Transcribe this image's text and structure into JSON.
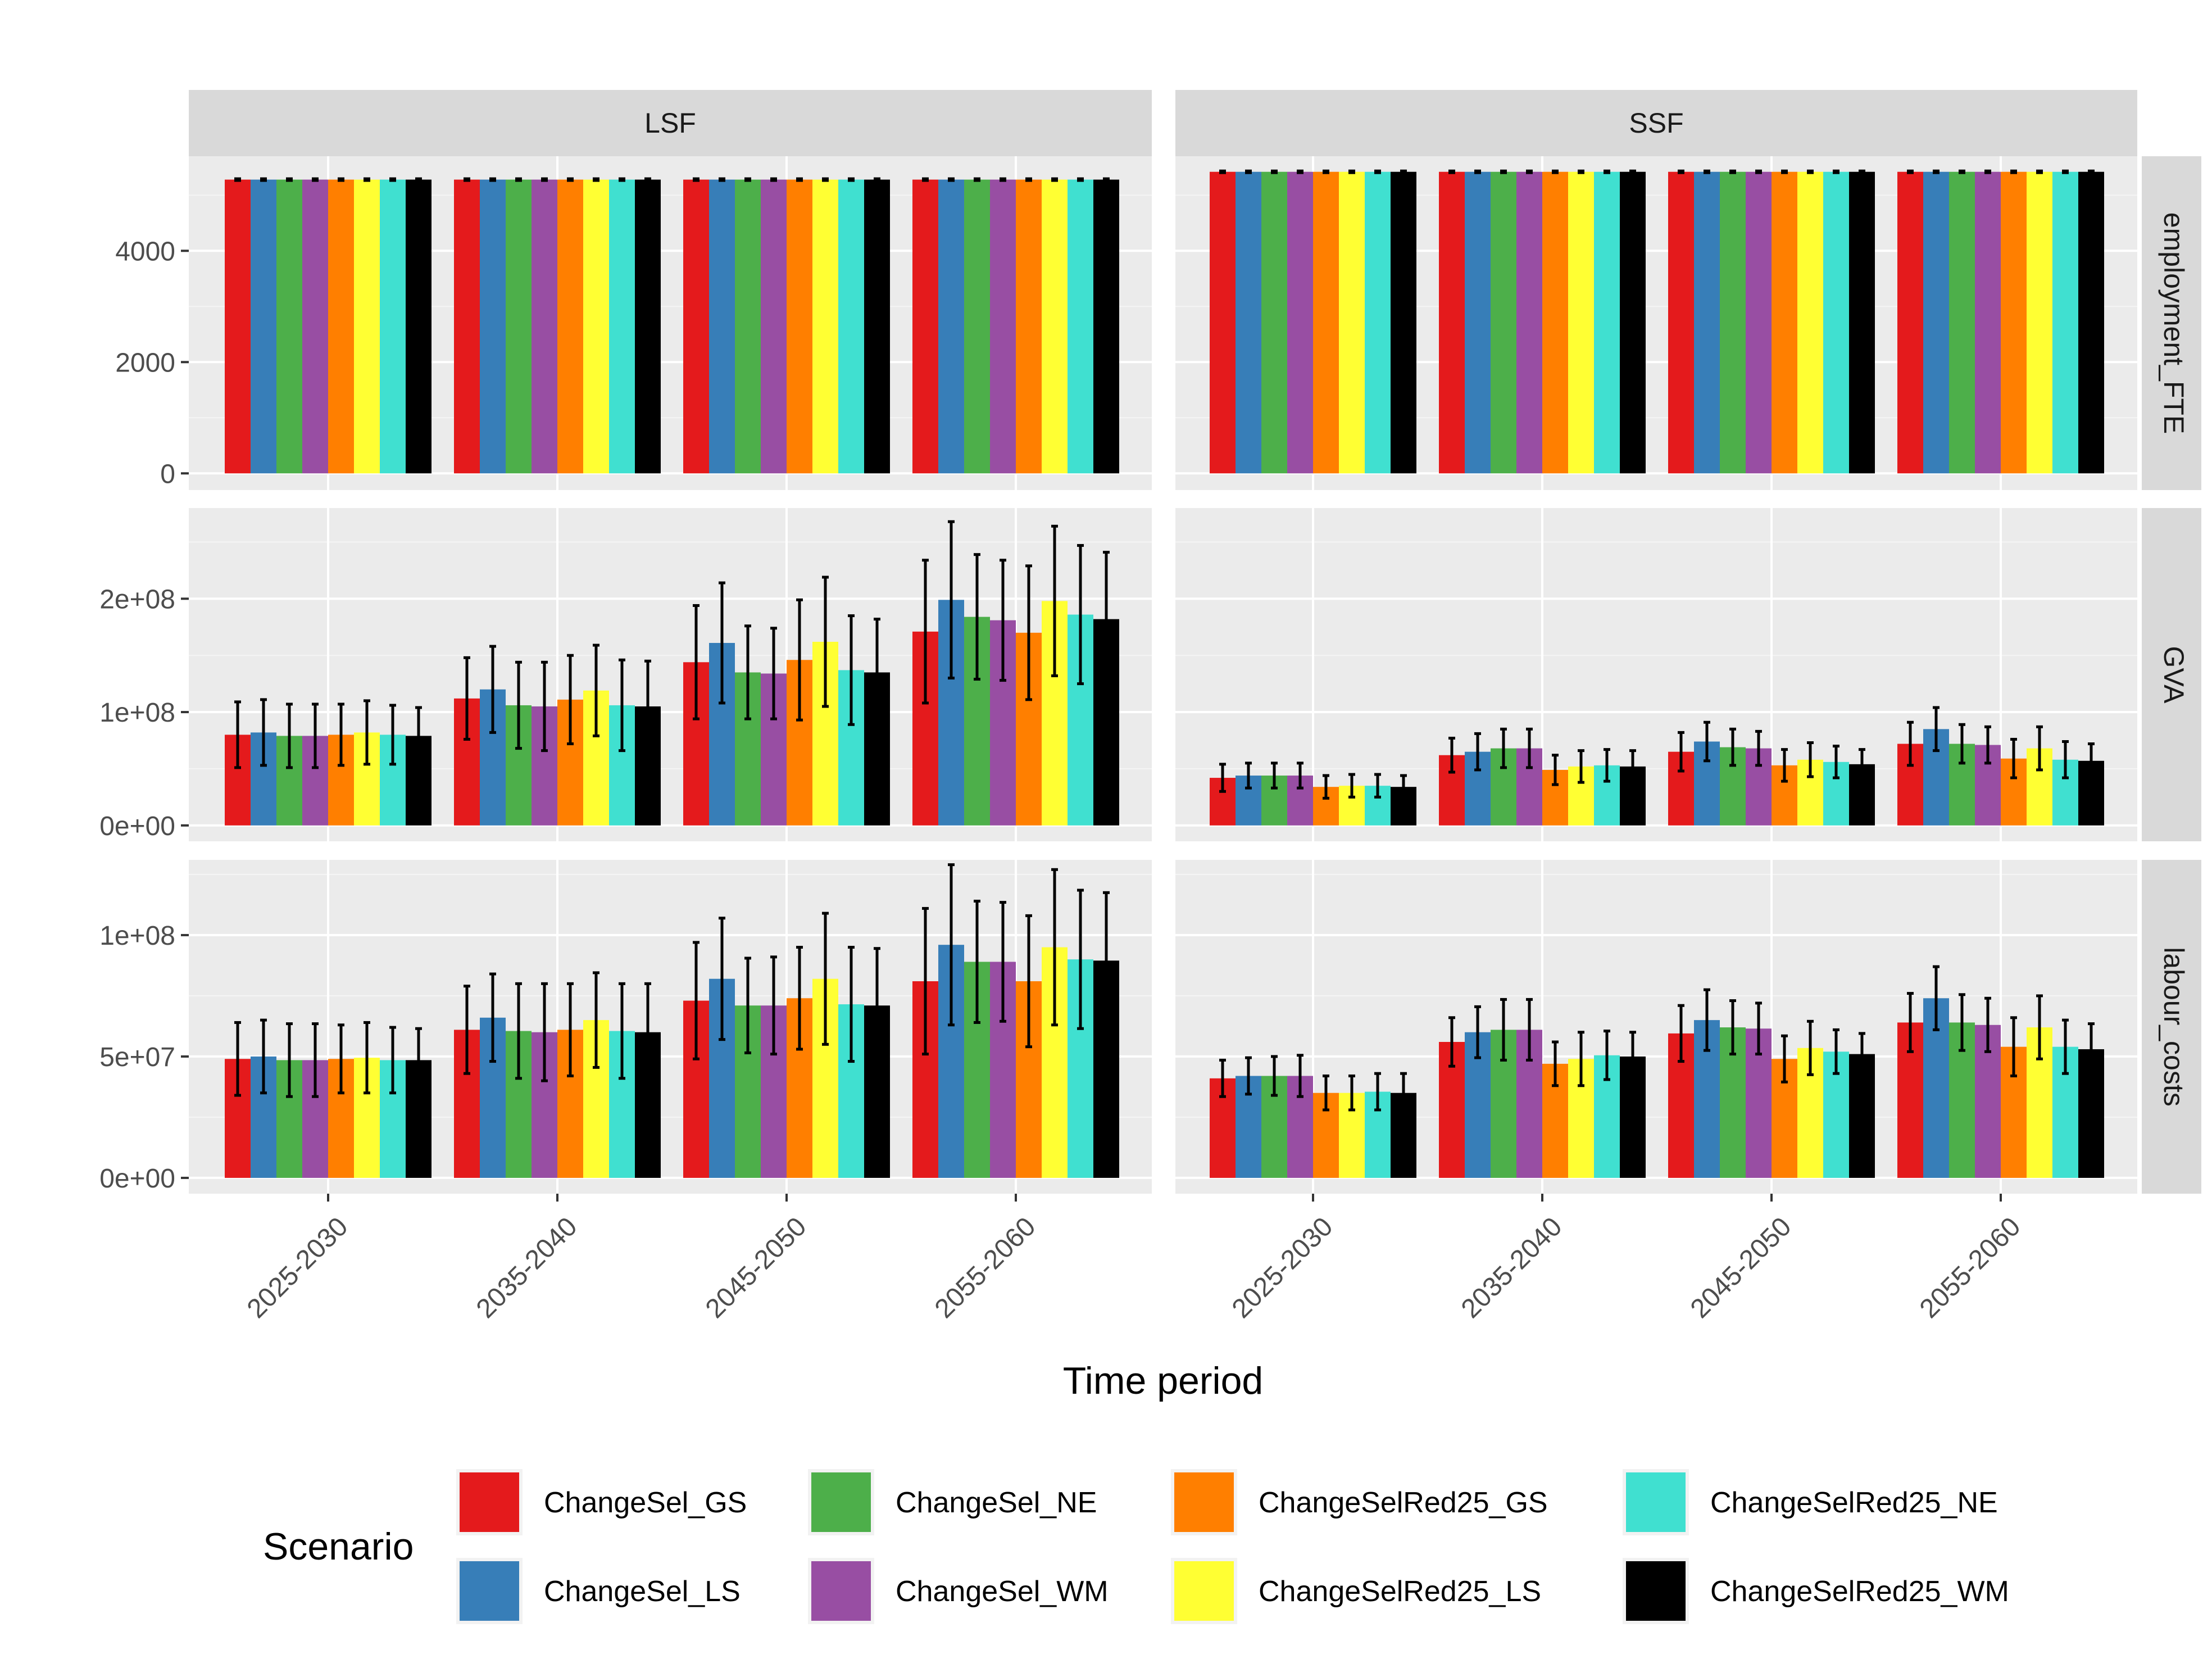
{
  "chart_data": {
    "type": "bar",
    "xlabel": "Time period",
    "ylabel": "",
    "facet_columns": [
      "LSF",
      "SSF"
    ],
    "facet_rows": [
      "employment_FTE",
      "GVA",
      "labour_costs"
    ],
    "categories": [
      "2025-2030",
      "2035-2040",
      "2045-2050",
      "2055-2060"
    ],
    "series_names": [
      "ChangeSel_GS",
      "ChangeSel_LS",
      "ChangeSel_NE",
      "ChangeSel_WM",
      "ChangeSelRed25_GS",
      "ChangeSelRed25_LS",
      "ChangeSelRed25_NE",
      "ChangeSelRed25_WM"
    ],
    "series_colors": [
      "#E41A1C",
      "#377EB8",
      "#4DAF4A",
      "#984EA3",
      "#FF7F00",
      "#FFFF33",
      "#40E0D0",
      "#000000"
    ],
    "legend": {
      "title": "Scenario",
      "position": "bottom"
    },
    "grid": true,
    "panels": {
      "employment_FTE": {
        "ylim": [
          -300,
          5700
        ],
        "ticks": [
          0,
          2000,
          4000
        ],
        "tick_labels": [
          "0",
          "2000",
          "4000"
        ],
        "LSF": {
          "values": [
            [
              5280,
              5280,
              5280,
              5280,
              5280,
              5280,
              5280,
              5280
            ],
            [
              5280,
              5280,
              5280,
              5280,
              5280,
              5280,
              5280,
              5280
            ],
            [
              5280,
              5280,
              5280,
              5280,
              5280,
              5280,
              5280,
              5280
            ],
            [
              5280,
              5280,
              5280,
              5280,
              5280,
              5280,
              5280,
              5280
            ]
          ],
          "errors": [
            [
              15,
              15,
              15,
              15,
              15,
              15,
              15,
              15
            ],
            [
              15,
              15,
              15,
              15,
              15,
              15,
              15,
              15
            ],
            [
              15,
              15,
              15,
              15,
              15,
              15,
              15,
              15
            ],
            [
              15,
              15,
              15,
              15,
              15,
              15,
              15,
              15
            ]
          ]
        },
        "SSF": {
          "values": [
            [
              5420,
              5420,
              5420,
              5420,
              5420,
              5420,
              5420,
              5420
            ],
            [
              5420,
              5420,
              5420,
              5420,
              5420,
              5420,
              5420,
              5420
            ],
            [
              5420,
              5420,
              5420,
              5420,
              5420,
              5420,
              5420,
              5420
            ],
            [
              5420,
              5420,
              5420,
              5420,
              5420,
              5420,
              5420,
              5420
            ]
          ],
          "errors": [
            [
              15,
              15,
              15,
              15,
              15,
              15,
              15,
              15
            ],
            [
              15,
              15,
              15,
              15,
              15,
              15,
              15,
              15
            ],
            [
              15,
              15,
              15,
              15,
              15,
              15,
              15,
              15
            ],
            [
              15,
              15,
              15,
              15,
              15,
              15,
              15,
              15
            ]
          ]
        }
      },
      "GVA": {
        "ylim": [
          -14000000,
          280000000
        ],
        "ticks": [
          0,
          100000000,
          200000000
        ],
        "tick_labels": [
          "0e+00",
          "1e+08",
          "2e+08"
        ],
        "LSF": {
          "values": [
            [
              80000000,
              82000000,
              79000000,
              79000000,
              80000000,
              82000000,
              80000000,
              79000000
            ],
            [
              112000000,
              120000000,
              106000000,
              105000000,
              111000000,
              119000000,
              106000000,
              105000000
            ],
            [
              144000000,
              161000000,
              135000000,
              134000000,
              146000000,
              162000000,
              137000000,
              135000000
            ],
            [
              171000000,
              199000000,
              184000000,
              181000000,
              170000000,
              198000000,
              186000000,
              182000000
            ]
          ],
          "errors": [
            [
              29000000,
              29000000,
              28000000,
              28000000,
              27000000,
              28000000,
              26000000,
              25000000
            ],
            [
              36000000,
              38000000,
              38000000,
              39000000,
              39000000,
              40000000,
              40000000,
              40000000
            ],
            [
              50000000,
              53000000,
              41000000,
              40000000,
              53000000,
              57000000,
              48000000,
              47000000
            ],
            [
              63000000,
              69000000,
              55000000,
              53000000,
              59000000,
              66000000,
              61000000,
              59000000
            ]
          ]
        },
        "SSF": {
          "values": [
            [
              42000000,
              44000000,
              44000000,
              44000000,
              34000000,
              35000000,
              35000000,
              34000000
            ],
            [
              62000000,
              65000000,
              68000000,
              68000000,
              49000000,
              52000000,
              53000000,
              52000000
            ],
            [
              65000000,
              74000000,
              69000000,
              68000000,
              53000000,
              58000000,
              56000000,
              54000000
            ],
            [
              72000000,
              85000000,
              72000000,
              71000000,
              59000000,
              68000000,
              58000000,
              57000000
            ]
          ],
          "errors": [
            [
              12000000,
              11000000,
              11000000,
              11000000,
              10000000,
              10000000,
              10000000,
              10000000
            ],
            [
              15000000,
              16000000,
              17000000,
              17000000,
              13000000,
              14000000,
              14000000,
              14000000
            ],
            [
              17000000,
              17000000,
              16000000,
              15000000,
              14000000,
              15000000,
              14000000,
              13000000
            ],
            [
              19000000,
              19000000,
              17000000,
              16000000,
              17000000,
              19000000,
              16000000,
              15000000
            ]
          ]
        }
      },
      "labour_costs": {
        "ylim": [
          -6500000,
          131000000
        ],
        "ticks": [
          0,
          50000000,
          100000000
        ],
        "tick_labels": [
          "0e+00",
          "5e+07",
          "1e+08"
        ],
        "LSF": {
          "values": [
            [
              49000000,
              50000000,
              48500000,
              48500000,
              49000000,
              49500000,
              48500000,
              48500000
            ],
            [
              61000000,
              66000000,
              60500000,
              60000000,
              61000000,
              65000000,
              60500000,
              60000000
            ],
            [
              73000000,
              82000000,
              71000000,
              71000000,
              74000000,
              82000000,
              71500000,
              71000000
            ],
            [
              81000000,
              96000000,
              89000000,
              89000000,
              81000000,
              95000000,
              90000000,
              89500000
            ]
          ],
          "errors": [
            [
              15000000,
              15000000,
              15000000,
              15000000,
              14000000,
              14500000,
              13500000,
              13000000
            ],
            [
              18000000,
              18000000,
              19500000,
              20000000,
              19000000,
              19500000,
              19500000,
              20000000
            ],
            [
              24000000,
              25000000,
              19500000,
              20000000,
              21000000,
              27000000,
              23500000,
              23500000
            ],
            [
              30000000,
              33000000,
              25000000,
              24500000,
              27000000,
              32000000,
              28500000,
              28000000
            ]
          ]
        },
        "SSF": {
          "values": [
            [
              41000000,
              42000000,
              42000000,
              42000000,
              35000000,
              35000000,
              35500000,
              35000000
            ],
            [
              56000000,
              60000000,
              61000000,
              61000000,
              47000000,
              49000000,
              50500000,
              50000000
            ],
            [
              59500000,
              65000000,
              62000000,
              61500000,
              49000000,
              53500000,
              52000000,
              51000000
            ],
            [
              64000000,
              74000000,
              64000000,
              63000000,
              54000000,
              62000000,
              54000000,
              53000000
            ]
          ],
          "errors": [
            [
              7500000,
              7500000,
              8000000,
              8500000,
              7000000,
              7000000,
              7500000,
              8000000
            ],
            [
              10000000,
              10500000,
              12500000,
              12500000,
              9000000,
              11000000,
              10000000,
              10000000
            ],
            [
              11500000,
              12500000,
              11000000,
              10500000,
              9500000,
              11000000,
              9000000,
              8500000
            ],
            [
              12000000,
              13000000,
              11500000,
              11000000,
              12000000,
              13000000,
              11000000,
              10500000
            ]
          ]
        }
      }
    }
  }
}
